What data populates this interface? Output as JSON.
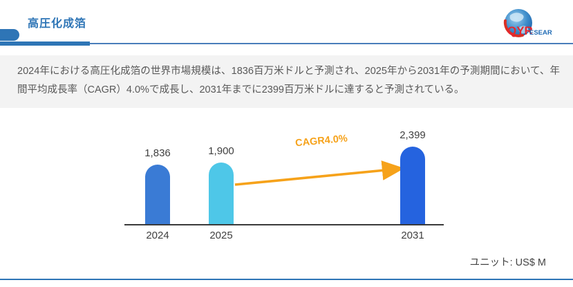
{
  "header": {
    "title": "高圧化成箔",
    "logo": {
      "text_primary": "QYR",
      "text_secondary": "ESEARCH",
      "primary_color": "#e8262d",
      "secondary_color": "#1f6bb5"
    }
  },
  "summary": {
    "text": "2024年における高圧化成箔の世界市場規模は、1836百万米ドルと予測され、2025年から2031年の予測期間において、年間平均成長率（CAGR）4.0%で成長し、2031年までに2399百万米ドルに達すると予測されている。"
  },
  "chart_data": {
    "type": "bar",
    "categories": [
      "2024",
      "2025",
      "2031"
    ],
    "values": [
      1836,
      1900,
      2399
    ],
    "value_labels": [
      "1,836",
      "1,900",
      "2,399"
    ],
    "series_name": "世界市場規模",
    "bar_colors": [
      "#3a7bd5",
      "#4ec7e8",
      "#2563df"
    ],
    "annotation": {
      "label": "CAGR4.0%",
      "color": "#f6a21a",
      "from_category": "2025",
      "to_category": "2031"
    },
    "title": "",
    "xlabel": "",
    "ylabel": "",
    "ylim": [
      0,
      2500
    ],
    "grid": false,
    "legend": false,
    "unit": "US$ M"
  },
  "footer": {
    "unit_label": "ユニット: US$ M"
  },
  "colors": {
    "accent_blue": "#2e75b6",
    "rule_blue": "#4a7ebb",
    "band_gray": "#f3f3f3",
    "text_gray": "#595959",
    "annotation_orange": "#f6a21a"
  }
}
